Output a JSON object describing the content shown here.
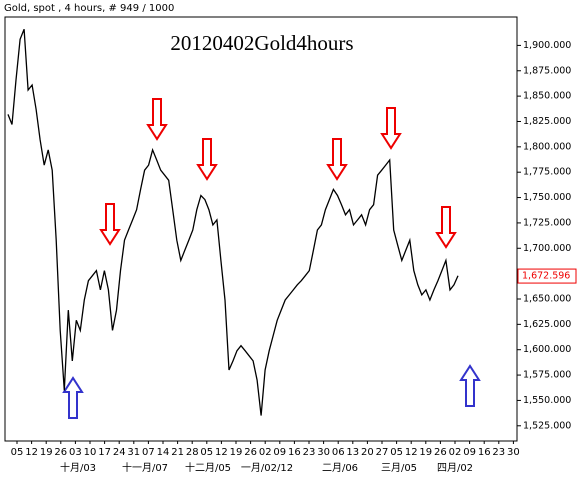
{
  "chart_data": {
    "type": "line",
    "header": "Gold, spot , 4 hours, # 949 / 1000",
    "title": "20120402Gold4hours",
    "color": "#000000",
    "values": [
      1832,
      1822,
      1866,
      1906,
      1916,
      1856,
      1861,
      1837,
      1807,
      1782,
      1797,
      1777,
      1708,
      1619,
      1560,
      1639,
      1589,
      1629,
      1619,
      1649,
      1668,
      1673,
      1678,
      1659,
      1678,
      1659,
      1619,
      1639,
      1678,
      1708,
      1718,
      1728,
      1738,
      1758,
      1777,
      1782,
      1797,
      1787,
      1777,
      1772,
      1767,
      1738,
      1708,
      1688,
      1698,
      1708,
      1718,
      1738,
      1752,
      1748,
      1738,
      1723,
      1728,
      1688,
      1649,
      1580,
      1589,
      1599,
      1604,
      1599,
      1594,
      1589,
      1570,
      1535,
      1580,
      1599,
      1614,
      1629,
      1639,
      1649,
      1654,
      1659,
      1664,
      1668,
      1673,
      1678,
      1698,
      1718,
      1723,
      1738,
      1748,
      1758,
      1752,
      1743,
      1733,
      1738,
      1723,
      1728,
      1733,
      1723,
      1738,
      1743,
      1772,
      1777,
      1782,
      1787,
      1718,
      1703,
      1688,
      1698,
      1708,
      1678,
      1664,
      1654,
      1659,
      1649,
      1659,
      1668,
      1678,
      1688,
      1659,
      1664,
      1673
    ],
    "ylim": [
      1510,
      1928
    ],
    "yticks": [
      {
        "value": 1525,
        "label": "1,525.000"
      },
      {
        "value": 1550,
        "label": "1,550.000"
      },
      {
        "value": 1575,
        "label": "1,575.000"
      },
      {
        "value": 1600,
        "label": "1,600.000"
      },
      {
        "value": 1625,
        "label": "1,625.000"
      },
      {
        "value": 1650,
        "label": "1,650.000"
      },
      {
        "value": 1675,
        "label": "1,675.000"
      },
      {
        "value": 1700,
        "label": "1,700.000"
      },
      {
        "value": 1725,
        "label": "1,725.000"
      },
      {
        "value": 1750,
        "label": "1,750.000"
      },
      {
        "value": 1775,
        "label": "1,775.000"
      },
      {
        "value": 1800,
        "label": "1,800.000"
      },
      {
        "value": 1825,
        "label": "1,825.000"
      },
      {
        "value": 1850,
        "label": "1,850.000"
      },
      {
        "value": 1875,
        "label": "1,875.000"
      },
      {
        "value": 1900,
        "label": "1,900.000"
      }
    ],
    "last_price": {
      "value": 1672.596,
      "label": "1,672.596"
    },
    "day_labels": [
      "05",
      "12",
      "19",
      "26",
      "03",
      "10",
      "17",
      "24",
      "31",
      "07",
      "14",
      "21",
      "28",
      "05",
      "12",
      "19",
      "26",
      "02",
      "09",
      "16",
      "23",
      "30",
      "06",
      "13",
      "20",
      "27",
      "05",
      "12",
      "19",
      "26",
      "02",
      "09",
      "16",
      "23",
      "30"
    ],
    "month_labels": [
      "十月/03",
      "十一月/07",
      "十二月/05",
      "一月/02/12",
      "二月/06",
      "三月/05",
      "四月/02"
    ]
  }
}
